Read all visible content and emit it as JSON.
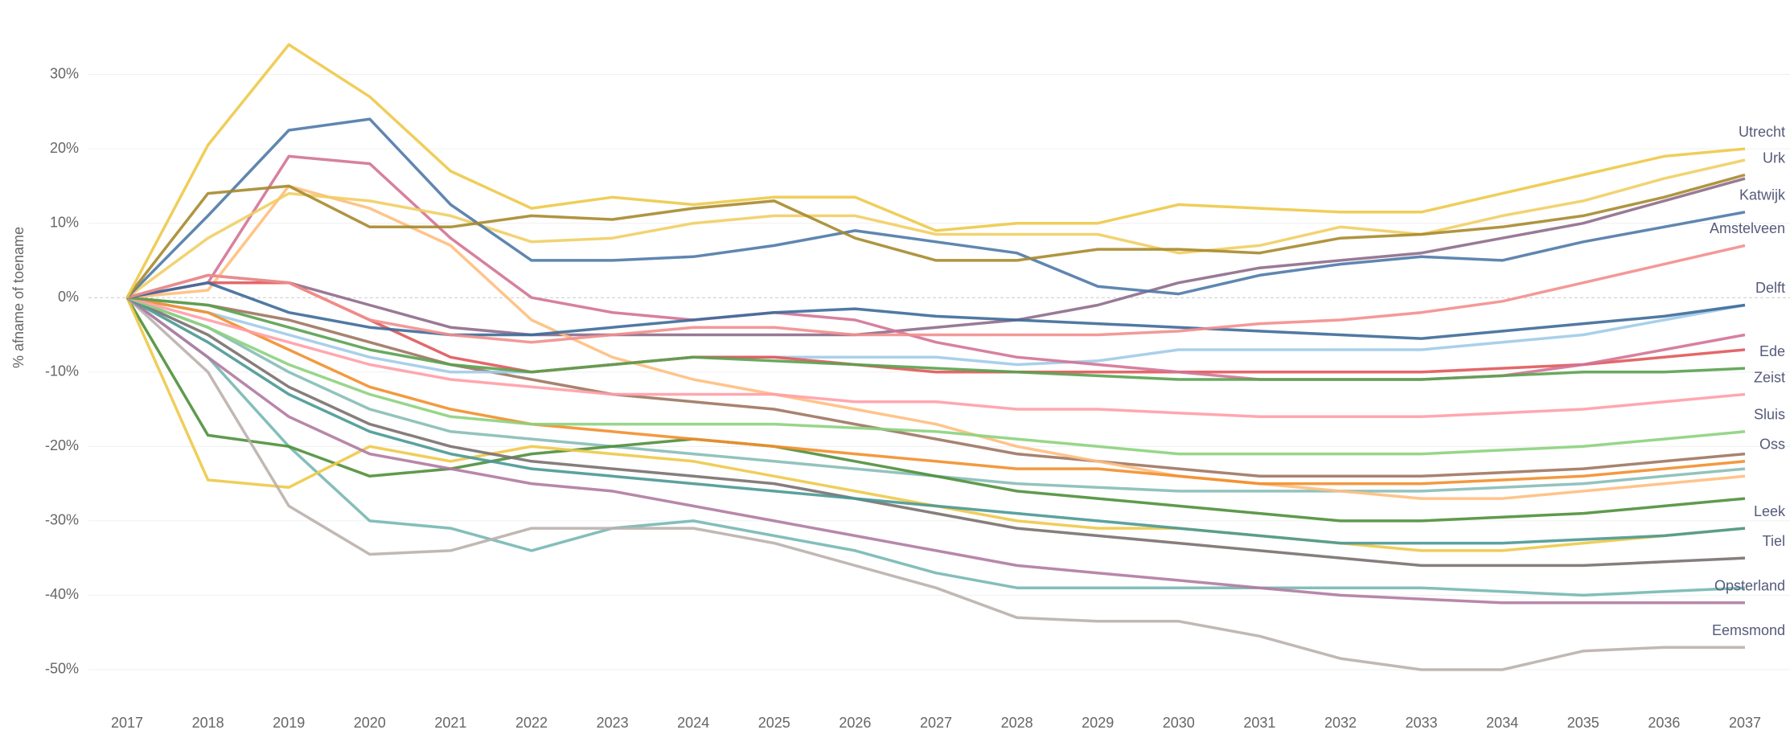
{
  "chart_data": {
    "type": "line",
    "y_label": "% afname of toename",
    "x": [
      2017,
      2018,
      2019,
      2020,
      2021,
      2022,
      2023,
      2024,
      2025,
      2026,
      2027,
      2028,
      2029,
      2030,
      2031,
      2032,
      2033,
      2034,
      2035,
      2036,
      2037
    ],
    "xticks": [
      2017,
      2018,
      2019,
      2020,
      2021,
      2022,
      2023,
      2024,
      2025,
      2026,
      2027,
      2028,
      2029,
      2030,
      2031,
      2032,
      2033,
      2034,
      2035,
      2036,
      2037
    ],
    "ylim": [
      -54,
      40
    ],
    "yticks": [
      {
        "value": -50,
        "label": "-50%"
      },
      {
        "value": -40,
        "label": "-40%"
      },
      {
        "value": -30,
        "label": "-30%"
      },
      {
        "value": -20,
        "label": "-20%"
      },
      {
        "value": -10,
        "label": "-10%"
      },
      {
        "value": 0,
        "label": "0%"
      },
      {
        "value": 10,
        "label": "10%"
      },
      {
        "value": 20,
        "label": "20%"
      },
      {
        "value": 30,
        "label": "30%"
      }
    ],
    "grid": true,
    "series": [
      {
        "name": "Utrecht",
        "color": "#edc948",
        "values": [
          0,
          20.5,
          34,
          27,
          17,
          12,
          13.5,
          12.5,
          13.5,
          13.5,
          9,
          10,
          10,
          12.5,
          12,
          11.5,
          11.5,
          14,
          16.5,
          19,
          20
        ]
      },
      {
        "name": "Urk",
        "color": "#a68a2c",
        "values": [
          0,
          14,
          15,
          9.5,
          9.5,
          11,
          10.5,
          12,
          13,
          8,
          5,
          5,
          6.5,
          6.5,
          6,
          8,
          8.5,
          9.5,
          11,
          13.5,
          16.5
        ]
      },
      {
        "name": "Katwijk",
        "color": "#4e79a7",
        "values": [
          0,
          11,
          22.5,
          24,
          12.5,
          5,
          5,
          5.5,
          7,
          9,
          7.5,
          6,
          1.5,
          0.5,
          3,
          4.5,
          5.5,
          5,
          7.5,
          9.5,
          11.5
        ]
      },
      {
        "name": "Amstelveen",
        "color": "#f28e8c",
        "values": [
          0,
          3,
          2,
          -3,
          -5,
          -6,
          -5,
          -4,
          -4,
          -5,
          -5,
          -5,
          -5,
          -4.5,
          -3.5,
          -3,
          -2,
          -0.5,
          2,
          4.5,
          7
        ]
      },
      {
        "name": "Delft",
        "color": "#3d6a99",
        "values": [
          0,
          2,
          -2,
          -4,
          -5,
          -5,
          -4,
          -3,
          -2,
          -1.5,
          -2.5,
          -3,
          -3.5,
          -4,
          -4.5,
          -5,
          -5.5,
          -4.5,
          -3.5,
          -2.5,
          -1
        ]
      },
      {
        "name": "Ede",
        "color": "#59a14f",
        "values": [
          0,
          -1,
          -4,
          -7,
          -9,
          -10,
          -9,
          -8,
          -8.5,
          -9,
          -9.5,
          -10,
          -10.5,
          -11,
          -11,
          -11,
          -11,
          -10.5,
          -10,
          -10,
          -9.5
        ]
      },
      {
        "name": "Zeist",
        "color": "#ff9da7",
        "values": [
          0,
          -3,
          -6,
          -9,
          -11,
          -12,
          -13,
          -13,
          -13,
          -14,
          -14,
          -15,
          -15,
          -15.5,
          -16,
          -16,
          -16,
          -15.5,
          -15,
          -14,
          -13
        ]
      },
      {
        "name": "Sluis",
        "color": "#8cd17d",
        "values": [
          0,
          -4,
          -9,
          -13,
          -16,
          -17,
          -17,
          -17,
          -17,
          -17.5,
          -18,
          -19,
          -20,
          -21,
          -21,
          -21,
          -21,
          -20.5,
          -20,
          -19,
          -18
        ]
      },
      {
        "name": "Oss",
        "color": "#f28e2b",
        "values": [
          0,
          -2,
          -7,
          -12,
          -15,
          -17,
          -18,
          -19,
          -20,
          -21,
          -22,
          -23,
          -23,
          -24,
          -25,
          -25,
          -25,
          -24.5,
          -24,
          -23,
          -22
        ]
      },
      {
        "name": "Leek",
        "color": "#499894",
        "values": [
          0,
          -6,
          -13,
          -18,
          -21,
          -23,
          -24,
          -25,
          -26,
          -27,
          -28,
          -29,
          -30,
          -31,
          -32,
          -33,
          -33,
          -33,
          -32.5,
          -32,
          -31
        ]
      },
      {
        "name": "Tiel",
        "color": "#79706e",
        "values": [
          0,
          -5,
          -12,
          -17,
          -20,
          -22,
          -23,
          -24,
          -25,
          -27,
          -29,
          -31,
          -32,
          -33,
          -34,
          -35,
          -36,
          -36,
          -36,
          -35.5,
          -35
        ]
      },
      {
        "name": "Opsterland",
        "color": "#b07aa1",
        "values": [
          0,
          -8,
          -16,
          -21,
          -23,
          -25,
          -26,
          -28,
          -30,
          -32,
          -34,
          -36,
          -37,
          -38,
          -39,
          -40,
          -40.5,
          -41,
          -41,
          -41,
          -41
        ]
      },
      {
        "name": "Eemsmond",
        "color": "#bab0ac",
        "values": [
          0,
          -10,
          -28,
          -34.5,
          -34,
          -31,
          -31,
          -31,
          -33,
          -36,
          -39,
          -43,
          -43.5,
          -43.5,
          -45.5,
          -48.5,
          -50,
          -50,
          -47.5,
          -47,
          -47
        ]
      },
      {
        "color": "#f1ce63",
        "values": [
          0,
          8,
          14,
          13,
          11,
          7.5,
          8,
          10,
          11,
          11,
          8.5,
          8.5,
          8.5,
          6,
          7,
          9.5,
          8.5,
          11,
          13,
          16,
          18.5
        ]
      },
      {
        "color": "#edc948",
        "values": [
          0,
          -24.5,
          -25.5,
          -20,
          -22,
          -20,
          -21,
          -22,
          -24,
          -26,
          -28,
          -30,
          -31,
          -31,
          -32,
          -33,
          -34,
          -34,
          -33,
          -32,
          -31
        ]
      },
      {
        "color": "#4e8f3a",
        "values": [
          0,
          -18.5,
          -20,
          -24,
          -23,
          -21,
          -20,
          -19,
          -20,
          -22,
          -24,
          -26,
          -27,
          -28,
          -29,
          -30,
          -30,
          -29.5,
          -29,
          -28,
          -27
        ]
      },
      {
        "color": "#d37295",
        "values": [
          0,
          2,
          19,
          18,
          8,
          0,
          -2,
          -3,
          -2,
          -3,
          -6,
          -8,
          -9,
          -10,
          -11,
          -11,
          -11,
          -10.5,
          -9,
          -7,
          -5
        ]
      },
      {
        "color": "#e15759",
        "values": [
          0,
          2,
          2,
          -3,
          -8,
          -10,
          -9,
          -8,
          -8,
          -9,
          -10,
          -10,
          -10,
          -10,
          -10,
          -10,
          -10,
          -9.5,
          -9,
          -8,
          -7
        ]
      },
      {
        "color": "#76b7b2",
        "values": [
          0,
          -8,
          -20,
          -30,
          -31,
          -34,
          -31,
          -30,
          -32,
          -34,
          -37,
          -39,
          -39,
          -39,
          -39,
          -39,
          -39,
          -39.5,
          -40,
          -39.5,
          -39
        ]
      },
      {
        "color": "#ffbe7d",
        "values": [
          0,
          1,
          15,
          12,
          7,
          -3,
          -8,
          -11,
          -13,
          -15,
          -17,
          -20,
          -22,
          -24,
          -25,
          -26,
          -27,
          -27,
          -26,
          -25,
          -24
        ]
      },
      {
        "color": "#a0cbe8",
        "values": [
          0,
          -2,
          -5,
          -8,
          -10,
          -10,
          -9,
          -8,
          -8,
          -8,
          -8,
          -9,
          -8.5,
          -7,
          -7,
          -7,
          -7,
          -6,
          -5,
          -3,
          -1
        ]
      },
      {
        "color": "#9d7660",
        "values": [
          0,
          -1,
          -3,
          -6,
          -9,
          -11,
          -13,
          -14,
          -15,
          -17,
          -19,
          -21,
          -22,
          -23,
          -24,
          -24,
          -24,
          -23.5,
          -23,
          -22,
          -21
        ]
      },
      {
        "color": "#86bcb6",
        "values": [
          0,
          -4,
          -10,
          -15,
          -18,
          -19,
          -20,
          -21,
          -22,
          -23,
          -24,
          -25,
          -25.5,
          -26,
          -26,
          -26,
          -26,
          -25.5,
          -25,
          -24,
          -23
        ]
      },
      {
        "color": "#8e6c8a",
        "values": [
          0,
          3,
          2,
          -1,
          -4,
          -5,
          -5,
          -5,
          -5,
          -5,
          -4,
          -3,
          -1,
          2,
          4,
          5,
          6,
          8,
          10,
          13,
          16
        ]
      }
    ]
  }
}
